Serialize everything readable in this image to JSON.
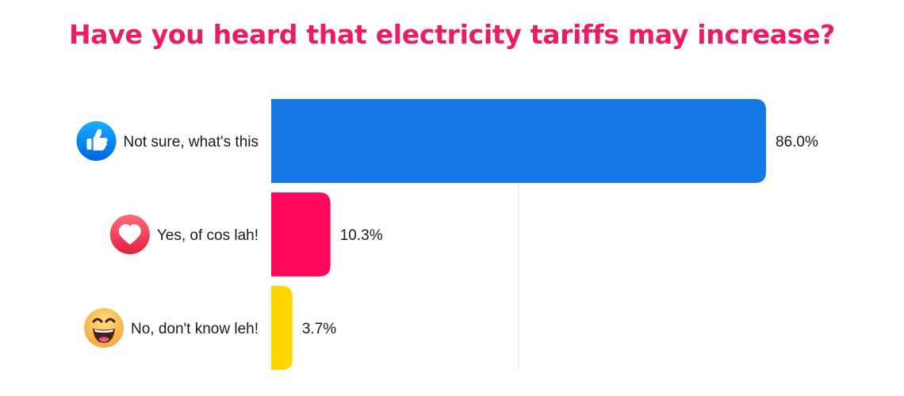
{
  "chart_data": {
    "type": "bar",
    "orientation": "horizontal",
    "title": "Have you heard that electricity tariffs may increase?",
    "xlabel": "",
    "ylabel": "",
    "xlim": [
      0,
      86.0
    ],
    "grid": true,
    "legend": "none",
    "categories": [
      "Not sure, what's this",
      "Yes, of cos lah!",
      "No, don't know leh!"
    ],
    "values": [
      86.0,
      10.3,
      3.7
    ],
    "value_labels": [
      "86.0%",
      "10.3%",
      "3.7%"
    ],
    "icons": [
      "thumbs-up-icon",
      "heart-icon",
      "laughing-face-icon"
    ],
    "colors": [
      "#1877E6",
      "#FF0A5A",
      "#FFD600"
    ]
  },
  "theme": {
    "title_color": "#EA1D64",
    "gridline_color": "#E6E6E6"
  }
}
